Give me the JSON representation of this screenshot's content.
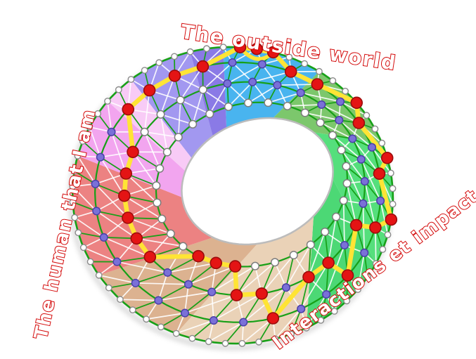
{
  "labels": {
    "top": "The outside world",
    "right": "Interactions et impact",
    "left": "The human that I am"
  },
  "wheel": {
    "sectors": [
      {
        "name": "blue",
        "color": "#49b4ef",
        "from": 98,
        "to": 62
      },
      {
        "name": "green-olive",
        "color": "#7cc76c",
        "from": 62,
        "to": 26
      },
      {
        "name": "green-bright",
        "color": "#55df7c",
        "from": 26,
        "to": -22
      },
      {
        "name": "green-bright-2",
        "color": "#4cd875",
        "from": -22,
        "to": -58
      },
      {
        "name": "tan-light",
        "color": "#ead2b7",
        "from": -58,
        "to": -106
      },
      {
        "name": "tan-dark",
        "color": "#dcb290",
        "from": -106,
        "to": -142
      },
      {
        "name": "salmon",
        "color": "#ec8282",
        "from": -142,
        "to": -190
      },
      {
        "name": "pink",
        "color": "#f2a5ef",
        "from": -190,
        "to": -214
      },
      {
        "name": "pink-light",
        "color": "#f8cbf6",
        "from": -214,
        "to": -226
      },
      {
        "name": "purple-light",
        "color": "#a298f0",
        "from": -226,
        "to": -250
      },
      {
        "name": "purple-dark",
        "color": "#8a7ae6",
        "from": -250,
        "to": -262
      }
    ],
    "spokes": [
      {
        "level": 4,
        "nodes": "wpp"
      },
      {
        "level": 4,
        "nodes": "wpp"
      },
      {
        "level": 3,
        "nodes": "wpr"
      },
      {
        "level": 3,
        "nodes": "wpr"
      },
      {
        "level": 4,
        "nodes": "wpp"
      },
      {
        "level": 3,
        "nodes": "wpr"
      },
      {
        "level": 4,
        "nodes": "wpp"
      },
      {
        "level": 3,
        "nodes": "wpr"
      },
      {
        "level": 4,
        "nodes": "wpp"
      },
      {
        "level": 3,
        "nodes": "wpr"
      },
      {
        "level": 2,
        "nodes": "wrp"
      },
      {
        "level": 3,
        "nodes": "wpr"
      },
      {
        "level": 2,
        "nodes": "wrp"
      },
      {
        "level": 2,
        "nodes": "wrp"
      },
      {
        "level": 3,
        "nodes": "wpr"
      },
      {
        "level": 2,
        "nodes": "wrp"
      },
      {
        "level": 2,
        "nodes": "wrp"
      },
      {
        "level": 1,
        "nodes": "rpp"
      },
      {
        "level": 1,
        "nodes": "rpp"
      },
      {
        "level": 1,
        "nodes": "rpp"
      },
      {
        "level": 2,
        "nodes": "wrp"
      },
      {
        "level": 2,
        "nodes": "wrp"
      },
      {
        "level": 2,
        "nodes": "wrp"
      },
      {
        "level": 2,
        "nodes": "wrp"
      },
      {
        "level": 2,
        "nodes": "wrp"
      },
      {
        "level": 2,
        "nodes": "wrp"
      },
      {
        "level": 3,
        "nodes": "wwr"
      },
      {
        "level": 3,
        "nodes": "wwr"
      },
      {
        "level": 3,
        "nodes": "wwr"
      },
      {
        "level": 3,
        "nodes": "wwr"
      }
    ],
    "colors": {
      "node_white": "#ffffff",
      "node_purple": "#7a70d8",
      "node_red": "#e41414",
      "node_red_stroke": "#9b0c0c",
      "node_purple_stroke": "#4a3fa8",
      "node_white_stroke": "#7d7d7d",
      "boundary_node_stroke": "#8a8a8a",
      "path_yellow": "#ffe435",
      "ring_green": "#17a017",
      "mesh_white": "#ffffff",
      "hole_stroke": "#bcbcbc",
      "shadow": "#9c9c9c",
      "label_red": "#d40b0b"
    }
  }
}
